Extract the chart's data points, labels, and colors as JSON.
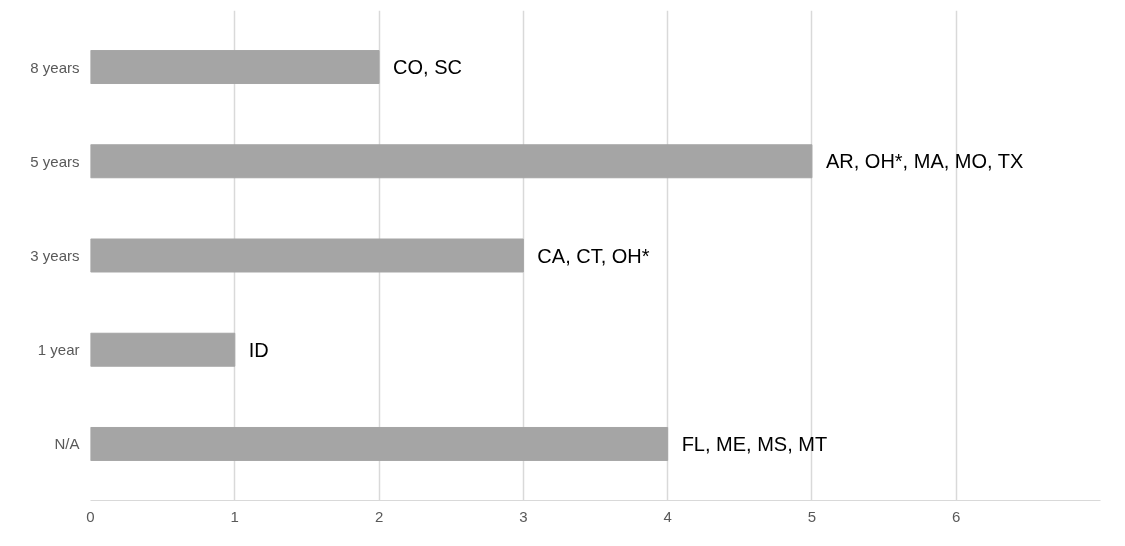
{
  "chart_data": {
    "type": "bar",
    "orientation": "horizontal",
    "categories": [
      "8 years",
      "5 years",
      "3 years",
      "1 year",
      "N/A"
    ],
    "values": [
      2,
      5,
      3,
      1,
      4
    ],
    "color": "#a5a5a5",
    "value_labels": [
      "CO, SC",
      "AR, OH*, MA, MO, TX",
      "CA, CT, OH*",
      "ID",
      "FL, ME, MS, MT"
    ],
    "xlim": [
      0,
      7
    ],
    "xticks": [
      0,
      1,
      2,
      3,
      4,
      5,
      6
    ],
    "grid": "x"
  }
}
